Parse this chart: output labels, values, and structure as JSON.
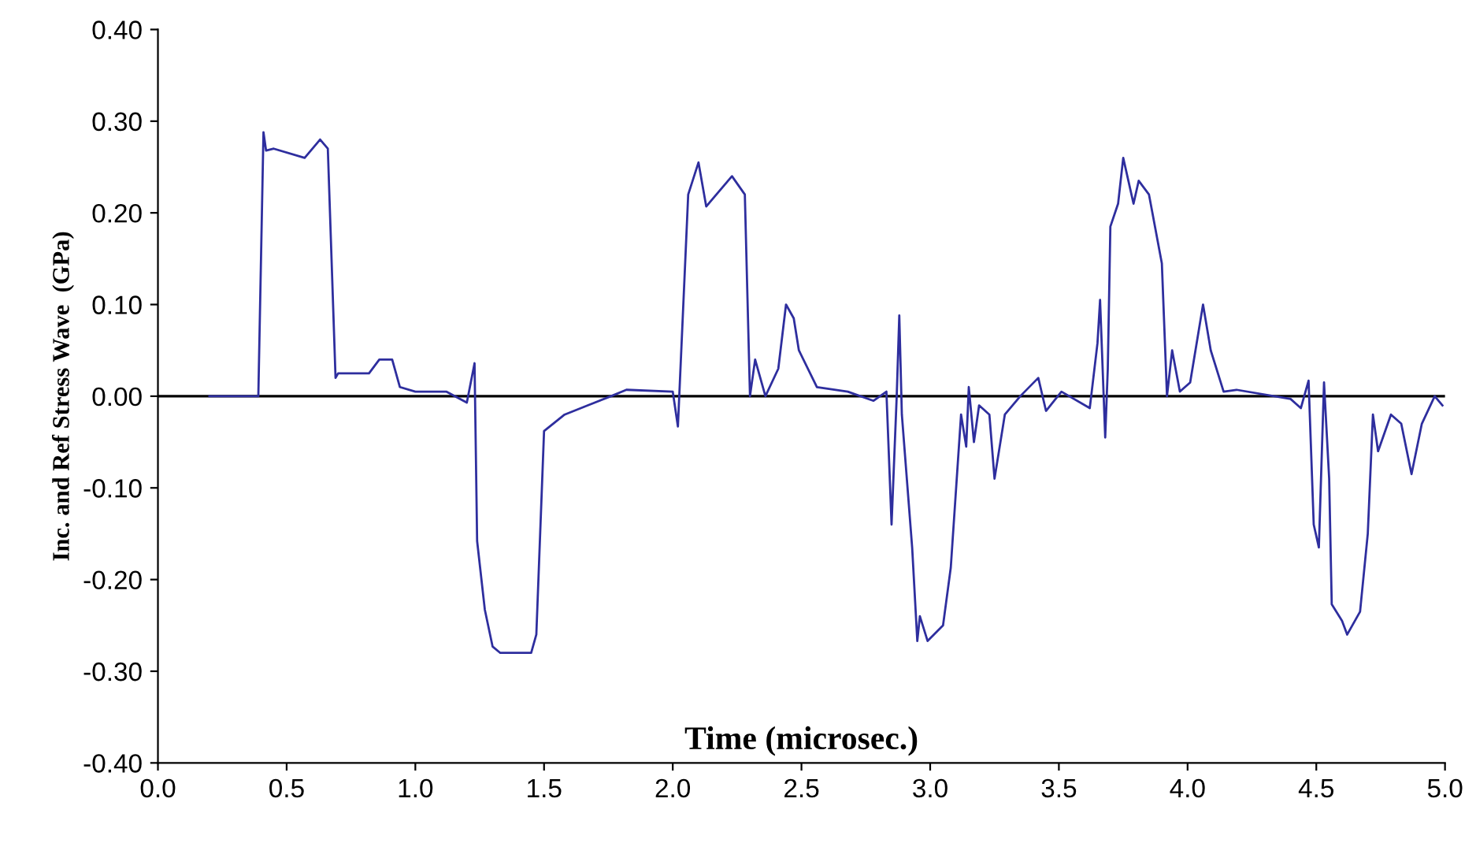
{
  "chart_data": {
    "type": "line",
    "xlabel": "Time (microsec.)",
    "ylabel": "Inc. and Ref Stress Wave  (GPa)",
    "xlim": [
      0,
      5
    ],
    "xticks": [
      {
        "value": 0,
        "label": "0.0"
      },
      {
        "value": 0.5,
        "label": "0.5"
      },
      {
        "value": 1,
        "label": "1.0"
      },
      {
        "value": 1.5,
        "label": "1.5"
      },
      {
        "value": 2,
        "label": "2.0"
      },
      {
        "value": 2.5,
        "label": "2.5"
      },
      {
        "value": 3,
        "label": "3.0"
      },
      {
        "value": 3.5,
        "label": "3.5"
      },
      {
        "value": 4,
        "label": "4.0"
      },
      {
        "value": 4.5,
        "label": "4.5"
      },
      {
        "value": 5,
        "label": "5.0"
      }
    ],
    "ylim": [
      -0.4,
      0.4
    ],
    "yticks": [
      {
        "value": -0.4,
        "label": "-0.40"
      },
      {
        "value": -0.3,
        "label": "-0.30"
      },
      {
        "value": -0.2,
        "label": "-0.20"
      },
      {
        "value": -0.1,
        "label": "-0.10"
      },
      {
        "value": 0,
        "label": "0.00"
      },
      {
        "value": 0.1,
        "label": "0.10"
      },
      {
        "value": 0.2,
        "label": "0.20"
      },
      {
        "value": 0.3,
        "label": "0.30"
      },
      {
        "value": 0.4,
        "label": "0.40"
      }
    ],
    "grid": false,
    "legend": false,
    "marker": "none",
    "line_style": "solid",
    "ref_lines": [
      {
        "axis": "y",
        "value": 0,
        "color": "#000000",
        "line_style": "solid"
      }
    ],
    "series": [
      {
        "color": "#2e2e9e",
        "x": [
          0.2,
          0.39,
          0.41,
          0.42,
          0.45,
          0.57,
          0.63,
          0.66,
          0.69,
          0.7,
          0.82,
          0.86,
          0.91,
          0.94,
          1.0,
          1.12,
          1.2,
          1.23,
          1.24,
          1.27,
          1.3,
          1.33,
          1.45,
          1.47,
          1.5,
          1.58,
          1.67,
          1.76,
          1.82,
          2.0,
          2.02,
          2.06,
          2.1,
          2.13,
          2.23,
          2.28,
          2.3,
          2.32,
          2.36,
          2.41,
          2.44,
          2.47,
          2.49,
          2.56,
          2.68,
          2.78,
          2.83,
          2.85,
          2.87,
          2.88,
          2.89,
          2.93,
          2.95,
          2.96,
          2.99,
          3.05,
          3.08,
          3.12,
          3.14,
          3.15,
          3.17,
          3.19,
          3.23,
          3.25,
          3.29,
          3.35,
          3.42,
          3.45,
          3.51,
          3.62,
          3.65,
          3.66,
          3.68,
          3.69,
          3.7,
          3.73,
          3.75,
          3.79,
          3.81,
          3.85,
          3.9,
          3.92,
          3.94,
          3.97,
          4.01,
          4.06,
          4.09,
          4.14,
          4.19,
          4.4,
          4.44,
          4.47,
          4.49,
          4.51,
          4.53,
          4.55,
          4.56,
          4.6,
          4.62,
          4.67,
          4.7,
          4.72,
          4.74,
          4.79,
          4.83,
          4.87,
          4.91,
          4.96,
          4.99
        ],
        "values": [
          0.0,
          0.0,
          0.288,
          0.268,
          0.27,
          0.26,
          0.28,
          0.27,
          0.02,
          0.025,
          0.025,
          0.04,
          0.04,
          0.01,
          0.005,
          0.005,
          -0.007,
          0.036,
          -0.158,
          -0.233,
          -0.273,
          -0.28,
          -0.28,
          -0.26,
          -0.038,
          -0.02,
          -0.01,
          0.0,
          0.007,
          0.005,
          -0.033,
          0.22,
          0.255,
          0.207,
          0.24,
          0.22,
          0.0,
          0.04,
          0.0,
          0.03,
          0.1,
          0.085,
          0.05,
          0.01,
          0.005,
          -0.005,
          0.005,
          -0.14,
          0.0,
          0.088,
          -0.02,
          -0.165,
          -0.267,
          -0.24,
          -0.267,
          -0.25,
          -0.187,
          -0.02,
          -0.055,
          0.01,
          -0.05,
          -0.01,
          -0.02,
          -0.09,
          -0.02,
          0.0,
          0.02,
          -0.016,
          0.005,
          -0.013,
          0.058,
          0.105,
          -0.045,
          0.03,
          0.185,
          0.21,
          0.26,
          0.21,
          0.235,
          0.22,
          0.145,
          0.0,
          0.05,
          0.005,
          0.015,
          0.1,
          0.05,
          0.005,
          0.007,
          -0.003,
          -0.013,
          0.017,
          -0.14,
          -0.165,
          0.015,
          -0.09,
          -0.227,
          -0.245,
          -0.26,
          -0.235,
          -0.15,
          -0.02,
          -0.06,
          -0.02,
          -0.03,
          -0.085,
          -0.03,
          0.0,
          -0.01
        ]
      }
    ]
  }
}
